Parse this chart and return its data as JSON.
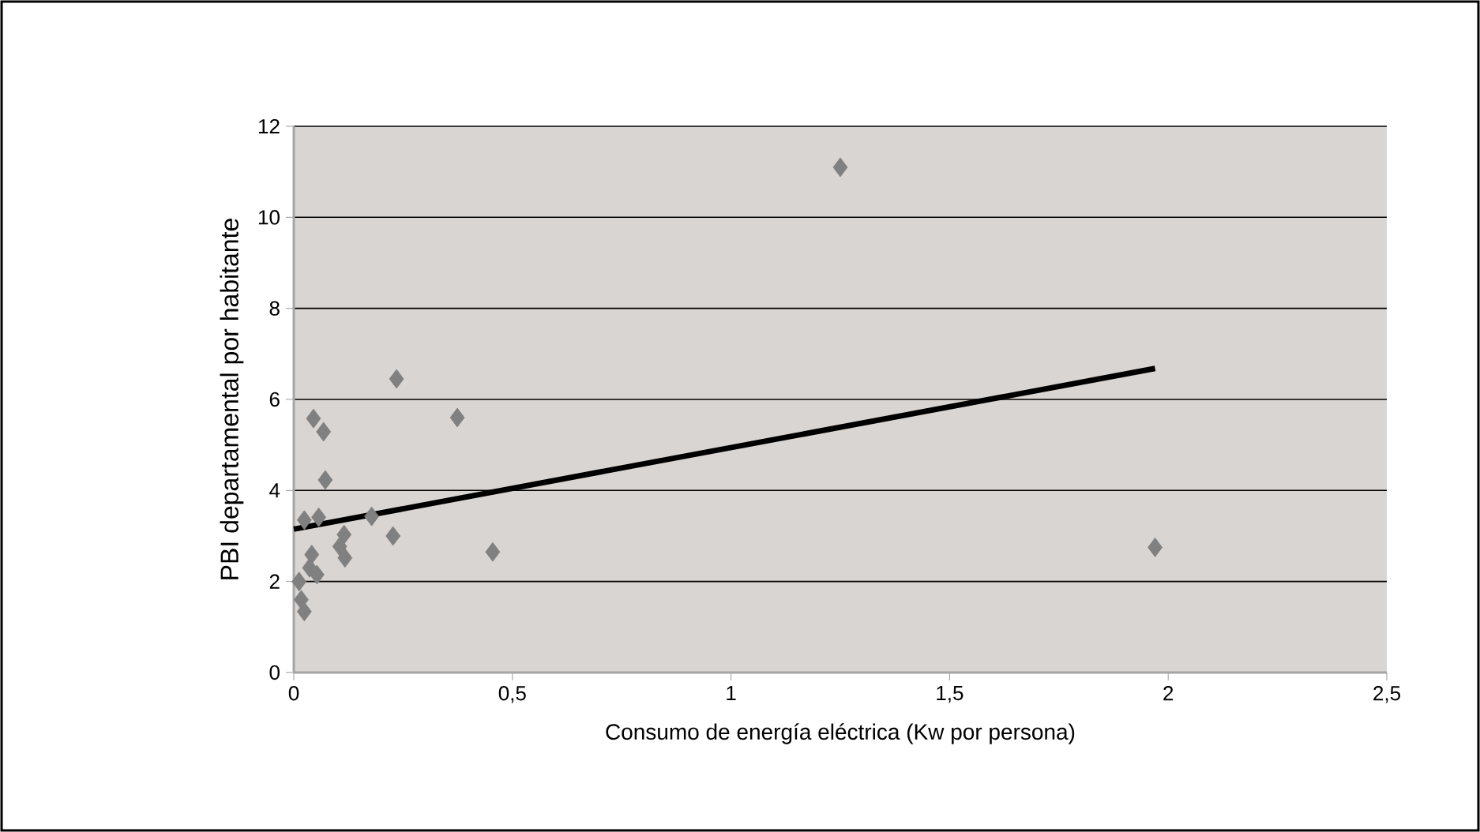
{
  "chart_data": {
    "type": "scatter",
    "xlabel": "Consumo de energía eléctrica (Kw por persona)",
    "ylabel": "PBI departamental por habitante",
    "xlim": [
      0,
      2.5
    ],
    "xticks": [
      {
        "value": 0,
        "label": "0"
      },
      {
        "value": 0.5,
        "label": "0,5"
      },
      {
        "value": 1,
        "label": "1"
      },
      {
        "value": 1.5,
        "label": "1,5"
      },
      {
        "value": 2,
        "label": "2"
      },
      {
        "value": 2.5,
        "label": "2,5"
      }
    ],
    "ylim": [
      0,
      12
    ],
    "yticks": [
      0,
      2,
      4,
      6,
      8,
      10,
      12
    ],
    "grid": "y",
    "series": [
      {
        "color": "#808080",
        "marker": "diamond",
        "x": [
          0.235,
          0.045,
          0.068,
          0.374,
          0.072,
          0.024,
          0.057,
          0.178,
          0.115,
          0.227,
          0.105,
          0.117,
          0.455,
          0.041,
          0.036,
          0.053,
          0.012,
          0.017,
          0.024,
          1.25,
          1.97
        ],
        "values": [
          6.45,
          5.58,
          5.29,
          5.6,
          4.23,
          3.35,
          3.41,
          3.43,
          3.03,
          3.0,
          2.77,
          2.52,
          2.65,
          2.59,
          2.3,
          2.15,
          2.0,
          1.6,
          1.34,
          11.1,
          2.75
        ]
      },
      {
        "type": "line",
        "color": "#000000",
        "x": [
          0,
          1.97
        ],
        "values": [
          3.15,
          6.68
        ]
      }
    ]
  }
}
